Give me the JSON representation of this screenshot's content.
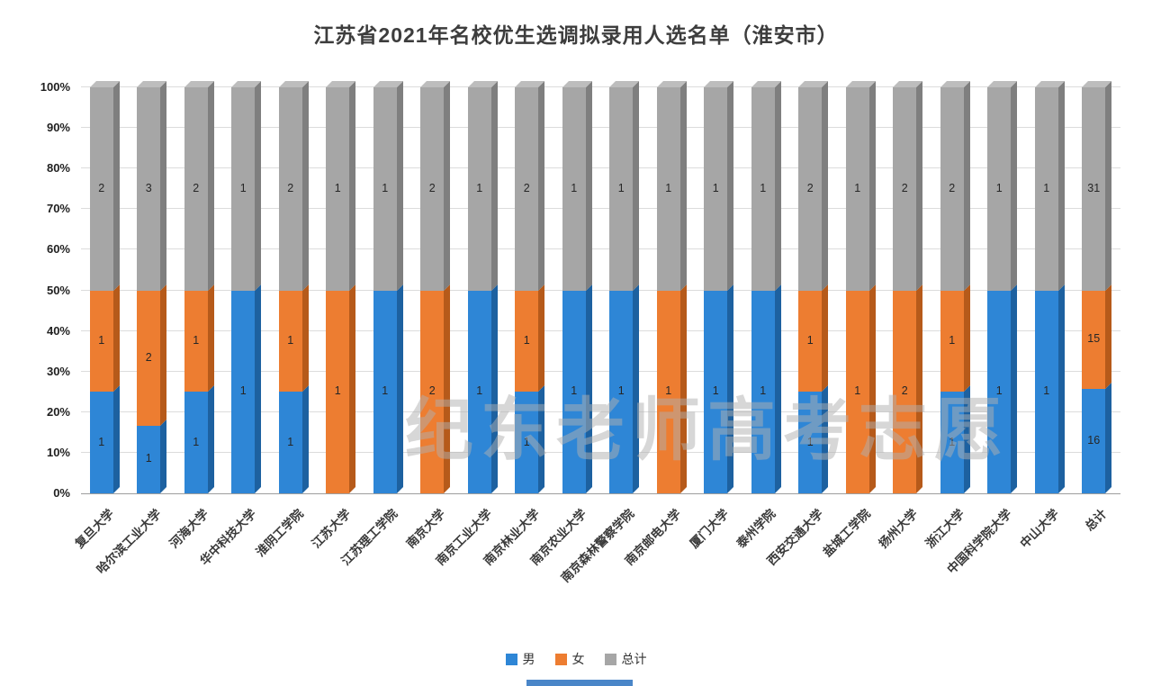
{
  "title": "江苏省2021年名校优生选调拟录用人选名单（淮安市）",
  "watermark": "纪东老师高考志愿",
  "legend": {
    "items": [
      {
        "label": "男",
        "color": "#2e86d6"
      },
      {
        "label": "女",
        "color": "#ed7d31"
      },
      {
        "label": "总计",
        "color": "#a6a6a6"
      }
    ]
  },
  "colors": {
    "male": "#2e86d6",
    "male_side": "#1d61a0",
    "female": "#ed7d31",
    "female_side": "#b65a1a",
    "total": "#a6a6a6",
    "total_side": "#7f7f7f",
    "top_cap": "#bdbdbd"
  },
  "chart_data": {
    "type": "bar",
    "subtype": "100%-stacked-column-3d",
    "title": "江苏省2021年名校优生选调拟录用人选名单（淮安市）",
    "categories": [
      "复旦大学",
      "哈尔滨工业大学",
      "河海大学",
      "华中科技大学",
      "淮阴工学院",
      "江苏大学",
      "江苏理工学院",
      "南京大学",
      "南京工业大学",
      "南京林业大学",
      "南京农业大学",
      "南京森林警察学院",
      "南京邮电大学",
      "厦门大学",
      "泰州学院",
      "西安交通大学",
      "盐城工学院",
      "扬州大学",
      "浙江大学",
      "中国科学院大学",
      "中山大学",
      "总计"
    ],
    "series": [
      {
        "name": "男",
        "values": [
          1,
          1,
          1,
          1,
          1,
          0,
          1,
          0,
          1,
          1,
          1,
          1,
          0,
          1,
          1,
          1,
          0,
          0,
          1,
          1,
          1,
          16
        ]
      },
      {
        "name": "女",
        "values": [
          1,
          2,
          1,
          0,
          1,
          1,
          0,
          2,
          0,
          1,
          0,
          0,
          1,
          0,
          0,
          1,
          1,
          2,
          1,
          0,
          0,
          15
        ]
      },
      {
        "name": "总计",
        "values": [
          2,
          3,
          2,
          1,
          2,
          1,
          1,
          2,
          1,
          2,
          1,
          1,
          1,
          1,
          1,
          2,
          1,
          2,
          2,
          1,
          1,
          31
        ]
      }
    ],
    "y_ticks": [
      "0%",
      "10%",
      "20%",
      "30%",
      "40%",
      "50%",
      "60%",
      "70%",
      "80%",
      "90%",
      "100%"
    ],
    "ylim": [
      0,
      100
    ],
    "grid": true,
    "legend_position": "bottom"
  }
}
